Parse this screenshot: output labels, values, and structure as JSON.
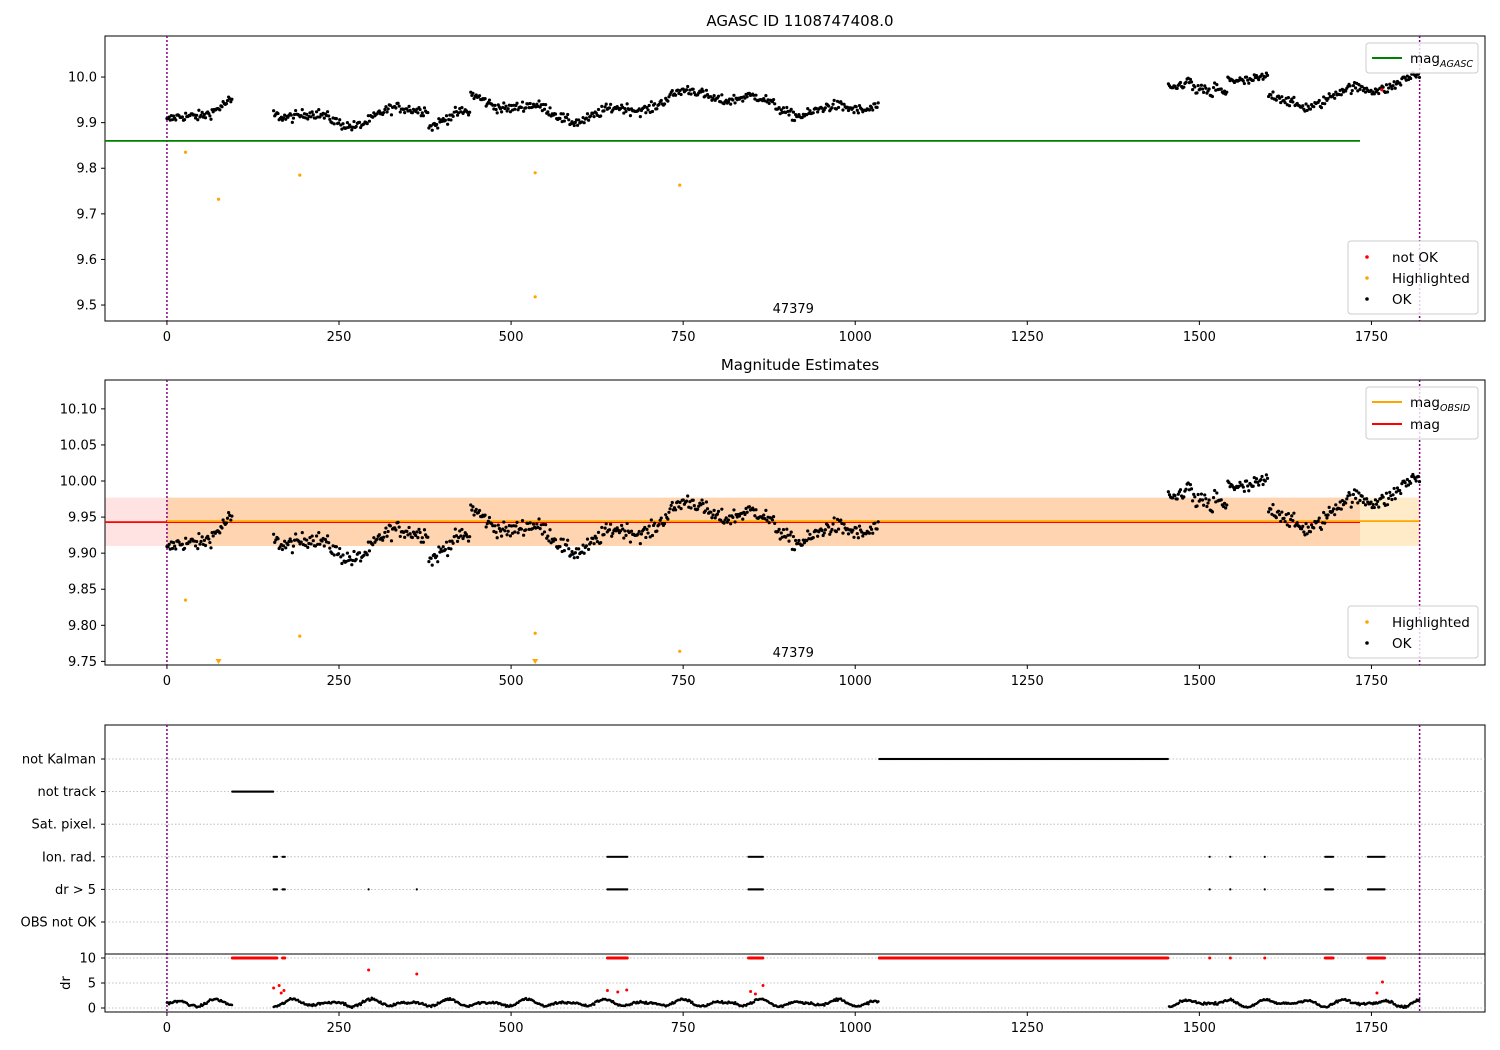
{
  "chart_data": [
    {
      "type": "scatter",
      "title": "AGASC ID 1108747408.0",
      "xlabel": "",
      "ylabel": "",
      "xlim": [
        -90,
        1915
      ],
      "ylim": [
        9.465,
        10.09
      ],
      "xticks": [
        0,
        250,
        500,
        750,
        1000,
        1250,
        1500,
        1750,
        2000
      ],
      "yticks": [
        9.5,
        9.6,
        9.7,
        9.8,
        9.9,
        10.0
      ],
      "ytick_labels": [
        "9.5",
        "9.6",
        "9.7",
        "9.8",
        "9.9",
        "10.0"
      ],
      "obsid_boundaries": [
        0,
        1820
      ],
      "obsid_annotation": "47379",
      "annotation_x": 910,
      "mag_agasc": 9.86,
      "hline_extent": [
        -90,
        1915
      ],
      "legend_lines": [
        {
          "label": "mag",
          "sub": "AGASC",
          "color": "#008000"
        }
      ],
      "legend_points": [
        {
          "label": "not OK",
          "color": "#ff0000"
        },
        {
          "label": "Highlighted",
          "color": "#ffa500"
        },
        {
          "label": "OK",
          "color": "#000000"
        }
      ],
      "highlighted": [
        [
          27,
          9.835
        ],
        [
          75,
          9.732
        ],
        [
          193,
          9.785
        ],
        [
          535,
          9.79
        ],
        [
          535,
          9.518
        ],
        [
          745,
          9.763
        ]
      ],
      "not_ok": [
        [
          1765,
          9.972
        ]
      ],
      "grid": false,
      "legend_placement": "upper-right / lower-right"
    },
    {
      "type": "scatter",
      "title": "Magnitude Estimates",
      "xlabel": "",
      "ylabel": "",
      "xlim": [
        -90,
        1915
      ],
      "ylim": [
        9.745,
        10.14
      ],
      "xticks": [
        0,
        250,
        500,
        750,
        1000,
        1250,
        1500,
        1750,
        2000
      ],
      "yticks": [
        9.75,
        9.8,
        9.85,
        9.9,
        9.95,
        10.0,
        10.05,
        10.1
      ],
      "ytick_labels": [
        "9.75",
        "9.80",
        "9.85",
        "9.90",
        "9.95",
        "10.00",
        "10.05",
        "10.10"
      ],
      "obsid_boundaries": [
        0,
        1820
      ],
      "obsid_annotation": "47379",
      "annotation_x": 910,
      "mag": 9.943,
      "mag_obsid": 9.943,
      "mag_band": [
        9.91,
        9.977
      ],
      "obsid_band": [
        9.91,
        9.977
      ],
      "obsid_band_x": [
        0,
        1820
      ],
      "legend_lines": [
        {
          "label": "mag",
          "sub": "OBSID",
          "color": "#ffa500"
        },
        {
          "label": "mag",
          "sub": "",
          "color": "#ff0000"
        }
      ],
      "legend_points": [
        {
          "label": "Highlighted",
          "color": "#ffa500"
        },
        {
          "label": "OK",
          "color": "#000000"
        }
      ],
      "highlighted": [
        [
          27,
          9.835
        ],
        [
          193,
          9.785
        ],
        [
          535,
          9.789
        ],
        [
          745,
          9.764
        ]
      ],
      "highlighted_offscale": [
        75,
        535
      ],
      "grid": false,
      "legend_placement": "upper-right / lower-right"
    },
    {
      "type": "scatter",
      "title": "",
      "xlim": [
        -90,
        1915
      ],
      "xticks": [
        0,
        250,
        500,
        750,
        1000,
        1250,
        1500,
        1750,
        2000
      ],
      "obsid_boundaries": [
        0,
        1820
      ],
      "flag_rows": [
        "not Kalman",
        "not track",
        "Sat. pixel.",
        "Ion. rad.",
        "dr > 5",
        "OBS not OK"
      ],
      "flag_ranges": {
        "not Kalman": [
          [
            1035,
            1455
          ]
        ],
        "not track": [
          [
            95,
            155
          ]
        ],
        "Sat. pixel.": [],
        "Ion. rad.": [
          [
            155,
            160
          ],
          [
            168,
            172
          ],
          [
            640,
            670
          ],
          [
            845,
            866
          ],
          [
            1515,
            1516
          ],
          [
            1545,
            1546
          ],
          [
            1595,
            1596
          ],
          [
            1683,
            1695
          ],
          [
            1745,
            1770
          ]
        ],
        "dr > 5": [
          [
            155,
            160
          ],
          [
            168,
            172
          ],
          [
            293,
            294
          ],
          [
            363,
            364
          ],
          [
            640,
            670
          ],
          [
            845,
            866
          ],
          [
            1515,
            1516
          ],
          [
            1545,
            1546
          ],
          [
            1595,
            1596
          ],
          [
            1683,
            1695
          ],
          [
            1745,
            1770
          ]
        ],
        "OBS not OK": []
      },
      "dr_ylabel": "dr",
      "dr_yticks": [
        0,
        5,
        10
      ],
      "dr_ylim": [
        -0.8,
        10.8
      ],
      "dr_red_at_10": [
        [
          95,
          155
        ],
        [
          155,
          160
        ],
        [
          168,
          172
        ],
        [
          640,
          670
        ],
        [
          845,
          866
        ],
        [
          1035,
          1455
        ],
        [
          1515,
          1516
        ],
        [
          1545,
          1546
        ],
        [
          1595,
          1596
        ],
        [
          1683,
          1695
        ],
        [
          1745,
          1770
        ]
      ],
      "dr_red_points": [
        [
          155,
          4.0
        ],
        [
          163,
          4.5
        ],
        [
          166,
          3.0
        ],
        [
          170,
          3.5
        ],
        [
          293,
          7.6
        ],
        [
          363,
          6.8
        ],
        [
          640,
          3.5
        ],
        [
          655,
          3.2
        ],
        [
          668,
          3.6
        ],
        [
          848,
          3.3
        ],
        [
          855,
          2.8
        ],
        [
          866,
          4.5
        ],
        [
          1758,
          3.0
        ],
        [
          1766,
          5.2
        ]
      ],
      "dr_gaps": [
        [
          95,
          155
        ],
        [
          1035,
          1455
        ]
      ],
      "grid": true
    }
  ]
}
